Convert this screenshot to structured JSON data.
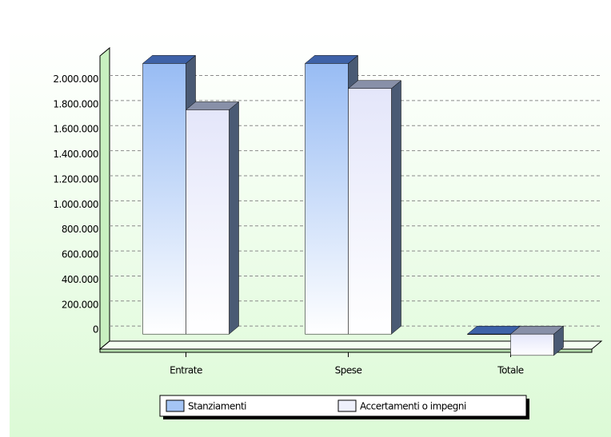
{
  "chart_data": {
    "type": "bar3d",
    "categories": [
      "Entrate",
      "Spese",
      "Totale"
    ],
    "series": [
      {
        "name": "Stanziamenti",
        "color": "#a4c4f4",
        "values": [
          2160000,
          2160000,
          0
        ]
      },
      {
        "name": "Accertamenti o impegni",
        "color": "#eef0fc",
        "values": [
          1790000,
          1960000,
          -170000
        ]
      }
    ],
    "ylim": [
      -120000,
      2220000
    ],
    "yticks": [
      0,
      {
        "value": 200000,
        "label": "200.000"
      },
      {
        "value": 400000,
        "label": "400.000"
      },
      {
        "value": 600000,
        "label": "600.000"
      },
      {
        "value": 800000,
        "label": "800.000"
      },
      {
        "value": 1000000,
        "label": "1.000.000"
      },
      {
        "value": 1200000,
        "label": "1.200.000"
      },
      {
        "value": 1400000,
        "label": "1.400.000"
      },
      {
        "value": 1600000,
        "label": "1.600.000"
      },
      {
        "value": 1800000,
        "label": "1.800.000"
      },
      {
        "value": 2000000,
        "label": "2.000.000"
      }
    ],
    "grid": true
  }
}
